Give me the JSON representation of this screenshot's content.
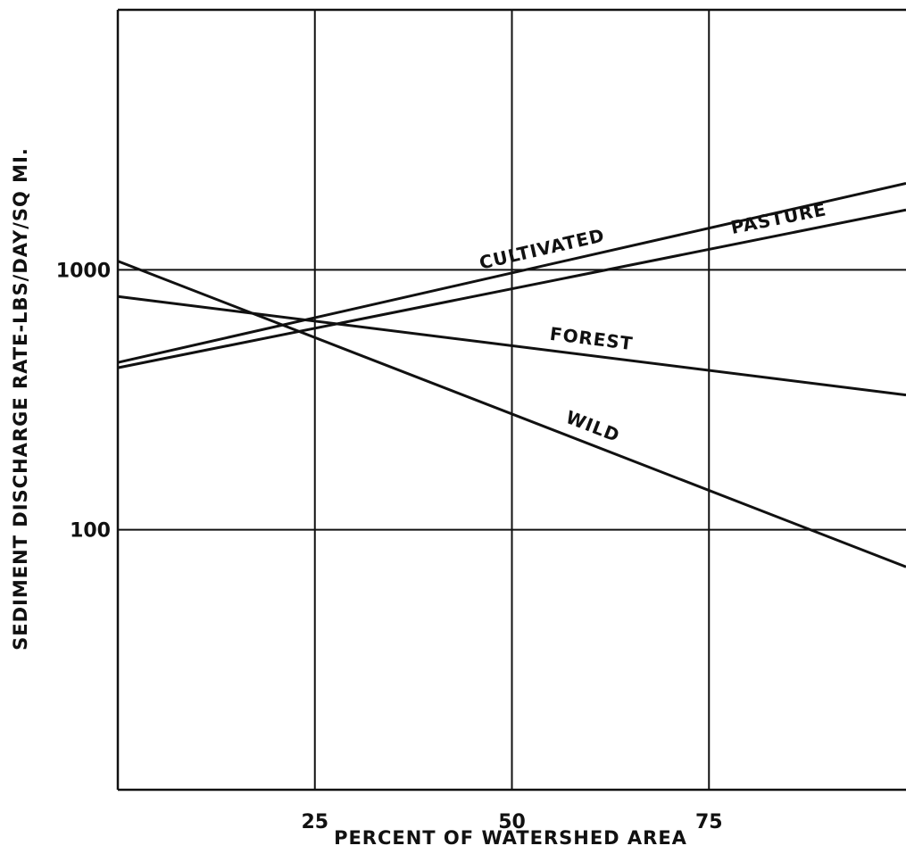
{
  "chart_data": {
    "type": "line",
    "title": "",
    "xlabel": "PERCENT OF WATERSHED AREA",
    "ylabel": "SEDIMENT DISCHARGE RATE-LBS/DAY/SQ MI.",
    "y_scale": "log",
    "grid": true,
    "xlim": [
      0,
      100
    ],
    "ylim": [
      10,
      10000
    ],
    "x_ticks": [
      25,
      50,
      75
    ],
    "x_tick_labels": [
      "25",
      "50",
      "75"
    ],
    "y_ticks": [
      100,
      1000
    ],
    "y_tick_labels": [
      "100",
      "1000"
    ],
    "series": [
      {
        "name": "CULTIVATED",
        "x": [
          0,
          100
        ],
        "y": [
          440,
          2150
        ]
      },
      {
        "name": "PASTURE",
        "x": [
          0,
          100
        ],
        "y": [
          420,
          1700
        ]
      },
      {
        "name": "FOREST",
        "x": [
          0,
          100
        ],
        "y": [
          790,
          330
        ]
      },
      {
        "name": "WILD",
        "x": [
          0,
          100
        ],
        "y": [
          1080,
          72
        ]
      }
    ]
  }
}
